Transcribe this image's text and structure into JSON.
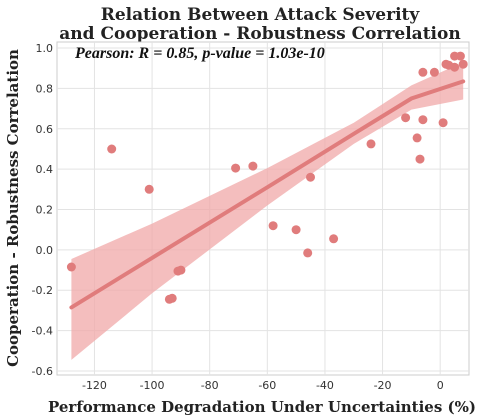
{
  "chart_data": {
    "type": "scatter",
    "title_line1": "Relation Between Attack Severity",
    "title_line2": "and Cooperation - Robustness Correlation",
    "xlabel": "Performance Degradation Under Uncertainties (%)",
    "ylabel": "Cooperation - Robustness Correlation",
    "annotation": "Pearson: R = 0.85, p-value = 1.03e-10",
    "xlim": [
      -133,
      10
    ],
    "ylim": [
      -0.62,
      1.03
    ],
    "xticks": [
      -120,
      -100,
      -80,
      -60,
      -40,
      -20,
      0
    ],
    "yticks": [
      -0.6,
      -0.4,
      -0.2,
      0.0,
      0.2,
      0.4,
      0.6,
      0.8,
      1.0
    ],
    "grid": true,
    "colors": {
      "points": "#e07c7c",
      "line": "#e07c7c",
      "band": "#f0a8a8"
    },
    "points": [
      {
        "x": -128,
        "y": -0.085
      },
      {
        "x": -114,
        "y": 0.5
      },
      {
        "x": -101,
        "y": 0.3
      },
      {
        "x": -94,
        "y": -0.245
      },
      {
        "x": -93,
        "y": -0.24
      },
      {
        "x": -91,
        "y": -0.105
      },
      {
        "x": -90,
        "y": -0.1
      },
      {
        "x": -71,
        "y": 0.405
      },
      {
        "x": -65,
        "y": 0.415
      },
      {
        "x": -58,
        "y": 0.12
      },
      {
        "x": -50,
        "y": 0.1
      },
      {
        "x": -46,
        "y": -0.015
      },
      {
        "x": -45,
        "y": 0.36
      },
      {
        "x": -37,
        "y": 0.055
      },
      {
        "x": -24,
        "y": 0.525
      },
      {
        "x": -12,
        "y": 0.655
      },
      {
        "x": -8,
        "y": 0.555
      },
      {
        "x": -7,
        "y": 0.45
      },
      {
        "x": -6,
        "y": 0.88
      },
      {
        "x": -6,
        "y": 0.645
      },
      {
        "x": -2,
        "y": 0.88
      },
      {
        "x": 1,
        "y": 0.63
      },
      {
        "x": 2,
        "y": 0.92
      },
      {
        "x": 3,
        "y": 0.915
      },
      {
        "x": 5,
        "y": 0.96
      },
      {
        "x": 5,
        "y": 0.905
      },
      {
        "x": 7,
        "y": 0.96
      },
      {
        "x": 8,
        "y": 0.92
      }
    ],
    "regression": {
      "x": [
        -128,
        -100,
        -60,
        -30,
        -10,
        8
      ],
      "y": [
        -0.285,
        -0.04,
        0.31,
        0.575,
        0.75,
        0.835
      ],
      "lower": [
        -0.545,
        -0.215,
        0.22,
        0.525,
        0.695,
        0.745
      ],
      "upper": [
        -0.045,
        0.13,
        0.405,
        0.63,
        0.815,
        0.93
      ]
    }
  }
}
